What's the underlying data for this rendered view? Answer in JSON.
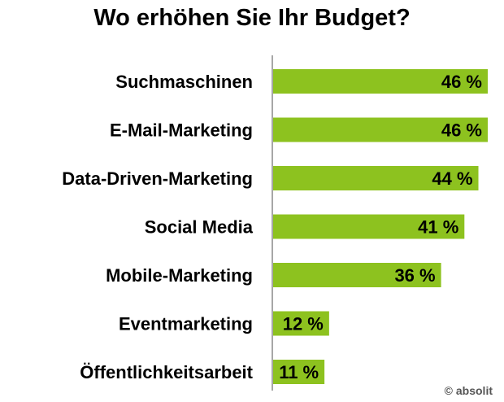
{
  "chart_data": {
    "type": "bar",
    "orientation": "horizontal",
    "title": "Wo erhöhen Sie Ihr Budget?",
    "categories": [
      "Suchmaschinen",
      "E-Mail-Marketing",
      "Data-Driven-Marketing",
      "Social Media",
      "Mobile-Marketing",
      "Eventmarketing",
      "Öffentlichkeitsarbeit"
    ],
    "values": [
      46,
      46,
      44,
      41,
      36,
      12,
      11
    ],
    "value_labels": [
      "46 %",
      "46 %",
      "44 %",
      "41 %",
      "36 %",
      "12 %",
      "11 %"
    ],
    "unit": "%",
    "xlim": [
      0,
      50
    ],
    "bar_color": "#8dc21f",
    "grid": false,
    "legend": "none"
  },
  "copyright": "© absolit"
}
